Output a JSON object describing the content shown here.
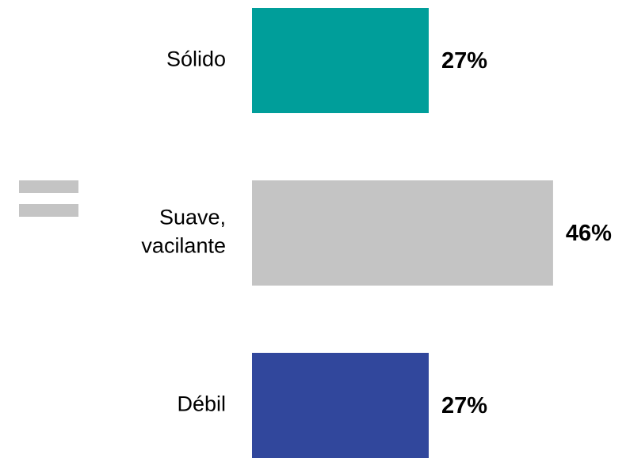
{
  "chart_data": {
    "type": "bar",
    "orientation": "horizontal",
    "categories": [
      "Sólido",
      "Suave, vacilante",
      "Débil"
    ],
    "values": [
      27,
      46,
      27
    ],
    "value_labels": [
      "27%",
      "46%",
      "27%"
    ],
    "colors": [
      "#009e9a",
      "#c4c4c4",
      "#31479c"
    ]
  }
}
